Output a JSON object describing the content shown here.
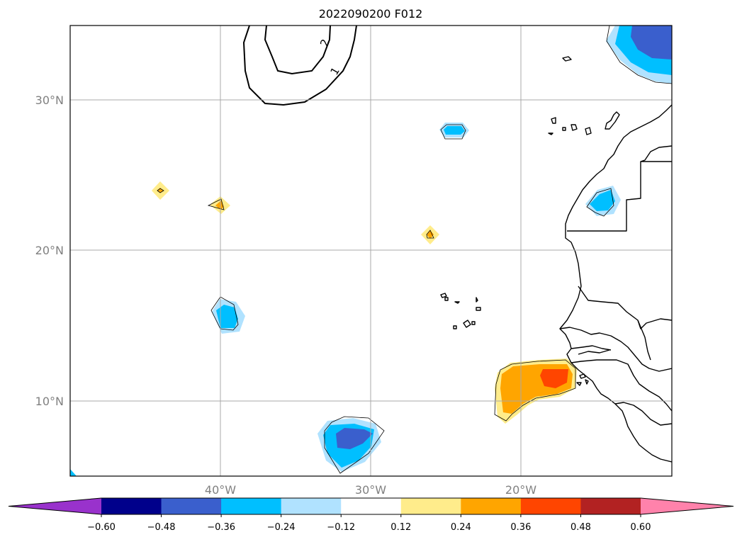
{
  "title": "2022090200 F012",
  "lat_labels": [
    "30°N",
    "20°N",
    "10°N"
  ],
  "lon_labels": [
    "40°W",
    "30°W",
    "20°W"
  ],
  "colorbar": {
    "ticks": [
      "−0.60",
      "−0.48",
      "−0.36",
      "−0.24",
      "−0.12",
      "0.12",
      "0.24",
      "0.36",
      "0.48",
      "0.60"
    ],
    "colors": [
      "#9932cc",
      "#00008b",
      "#3a5fcd",
      "#00bfff",
      "#b0e2ff",
      "#ffffff",
      "#ffec8b",
      "#ffa500",
      "#ff4500",
      "#b22222",
      "#ff82ab"
    ]
  },
  "contour_labels": [
    "2",
    "1"
  ],
  "map_extent": {
    "lon": [
      -50,
      -10
    ],
    "lat": [
      5,
      35
    ]
  }
}
